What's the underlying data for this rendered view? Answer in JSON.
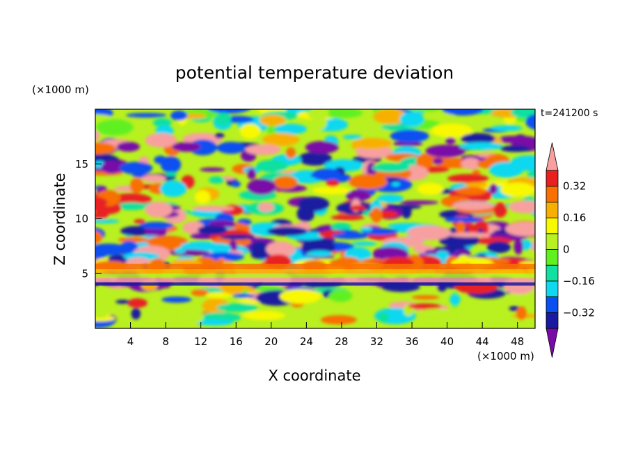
{
  "chart_data": {
    "type": "heatmap",
    "title": "potential temperature deviation",
    "xlabel": "X coordinate",
    "ylabel": "Z coordinate",
    "x_unit": "(×1000 m)",
    "y_unit": "(×1000 m)",
    "time_label": "t=241200 s",
    "xlim": [
      0,
      50
    ],
    "ylim": [
      0,
      20
    ],
    "x_ticks": [
      "4",
      "8",
      "12",
      "16",
      "20",
      "24",
      "28",
      "32",
      "36",
      "40",
      "44",
      "48"
    ],
    "y_ticks": [
      "5",
      "10",
      "15"
    ],
    "colorbar": {
      "tick_labels": [
        "0.32",
        "0.16",
        "0",
        "−0.16",
        "−0.32"
      ],
      "levels": [
        -0.4,
        -0.32,
        -0.24,
        -0.16,
        -0.08,
        0,
        0.08,
        0.16,
        0.24,
        0.32,
        0.4
      ],
      "colors": [
        "#7a0aa8",
        "#1a1aa0",
        "#0a50f0",
        "#10d8f0",
        "#10e0a0",
        "#60f020",
        "#b8f020",
        "#f8f800",
        "#f8b000",
        "#f87000",
        "#e82020",
        "#f8a0a0"
      ]
    }
  }
}
